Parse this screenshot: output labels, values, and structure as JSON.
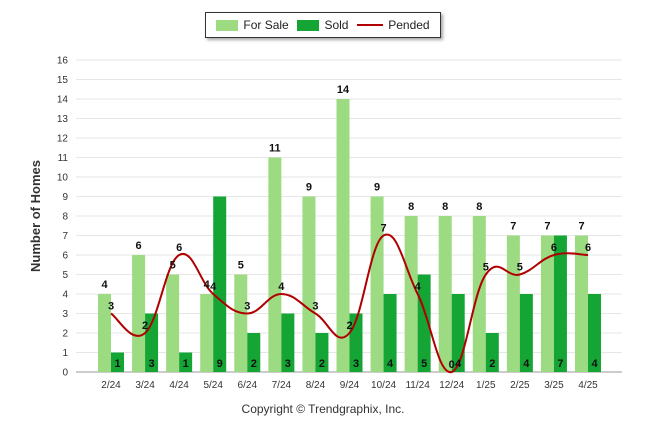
{
  "legend": {
    "items": [
      {
        "label": "For Sale",
        "color": "#9cdb82"
      },
      {
        "label": "Sold",
        "color": "#14a535"
      },
      {
        "label": "Pended",
        "color": "#b00000"
      }
    ]
  },
  "copyright": "Copyright © Trendgraphix, Inc.",
  "chart_data": {
    "type": "bar",
    "ylabel": "Number of Homes",
    "xlabel": "",
    "ylim": [
      0,
      16
    ],
    "yticks": [
      0,
      1,
      2,
      3,
      4,
      5,
      6,
      7,
      8,
      9,
      10,
      11,
      12,
      13,
      14,
      15,
      16
    ],
    "grid": true,
    "legend_position": "top-center",
    "categories": [
      "2/24",
      "3/24",
      "4/24",
      "5/24",
      "6/24",
      "7/24",
      "8/24",
      "9/24",
      "10/24",
      "11/24",
      "12/24",
      "1/25",
      "2/25",
      "3/25",
      "4/25"
    ],
    "series": [
      {
        "name": "For Sale",
        "type": "bar",
        "color": "#9cdb82",
        "values": [
          4,
          6,
          5,
          4,
          5,
          11,
          9,
          14,
          9,
          8,
          8,
          8,
          7,
          7,
          7
        ]
      },
      {
        "name": "Sold",
        "type": "bar",
        "color": "#14a535",
        "values": [
          1,
          3,
          1,
          9,
          2,
          3,
          2,
          3,
          4,
          5,
          4,
          2,
          4,
          7,
          4
        ]
      },
      {
        "name": "Pended",
        "type": "line",
        "color": "#b00000",
        "values": [
          3,
          2,
          6,
          4,
          3,
          4,
          3,
          2,
          7,
          4,
          0,
          5,
          5,
          6,
          6
        ]
      }
    ]
  }
}
